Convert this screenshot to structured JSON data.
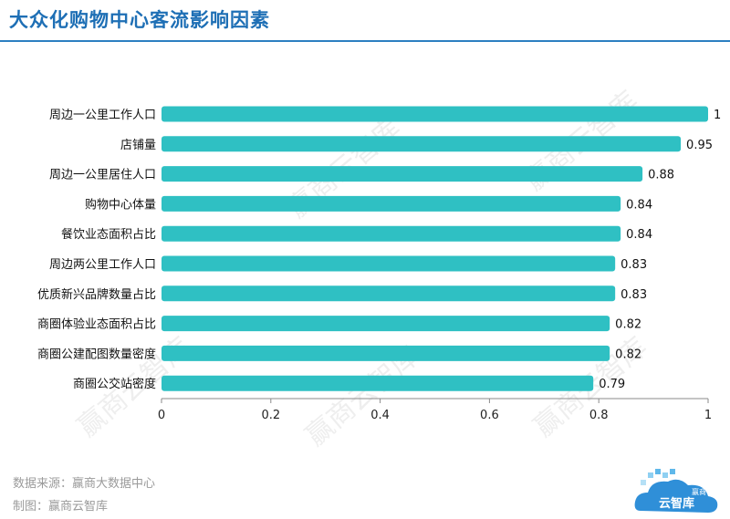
{
  "title": "大众化购物中心客流影响因素",
  "source": "数据来源：赢商大数据中心",
  "made_by": "制图：赢商云智库",
  "watermark_text": "赢商云智库",
  "logo": {
    "top_text": "赢商",
    "main_text": "云智库"
  },
  "colors": {
    "bar": "#2fc0c3",
    "title": "#1e6fb5",
    "logo": "#2f8fd8"
  },
  "chart_data": {
    "type": "bar",
    "orientation": "horizontal",
    "categories": [
      "周边一公里工作人口",
      "店铺量",
      "周边一公里居住人口",
      "购物中心体量",
      "餐饮业态面积占比",
      "周边两公里工作人口",
      "优质新兴品牌数量占比",
      "商圈体验业态面积占比",
      "商圈公建配图数量密度",
      "商圈公交站密度"
    ],
    "values": [
      1,
      0.95,
      0.88,
      0.84,
      0.84,
      0.83,
      0.83,
      0.82,
      0.82,
      0.79
    ],
    "value_labels": [
      "1",
      "0.95",
      "0.88",
      "0.84",
      "0.84",
      "0.83",
      "0.83",
      "0.82",
      "0.82",
      "0.79"
    ],
    "xlim": [
      0,
      1
    ],
    "xticks": [
      0,
      0.2,
      0.4,
      0.6,
      0.8,
      1
    ],
    "xtick_labels": [
      "0",
      "0.2",
      "0.4",
      "0.6",
      "0.8",
      "1"
    ],
    "grid": false,
    "legend": "none"
  }
}
